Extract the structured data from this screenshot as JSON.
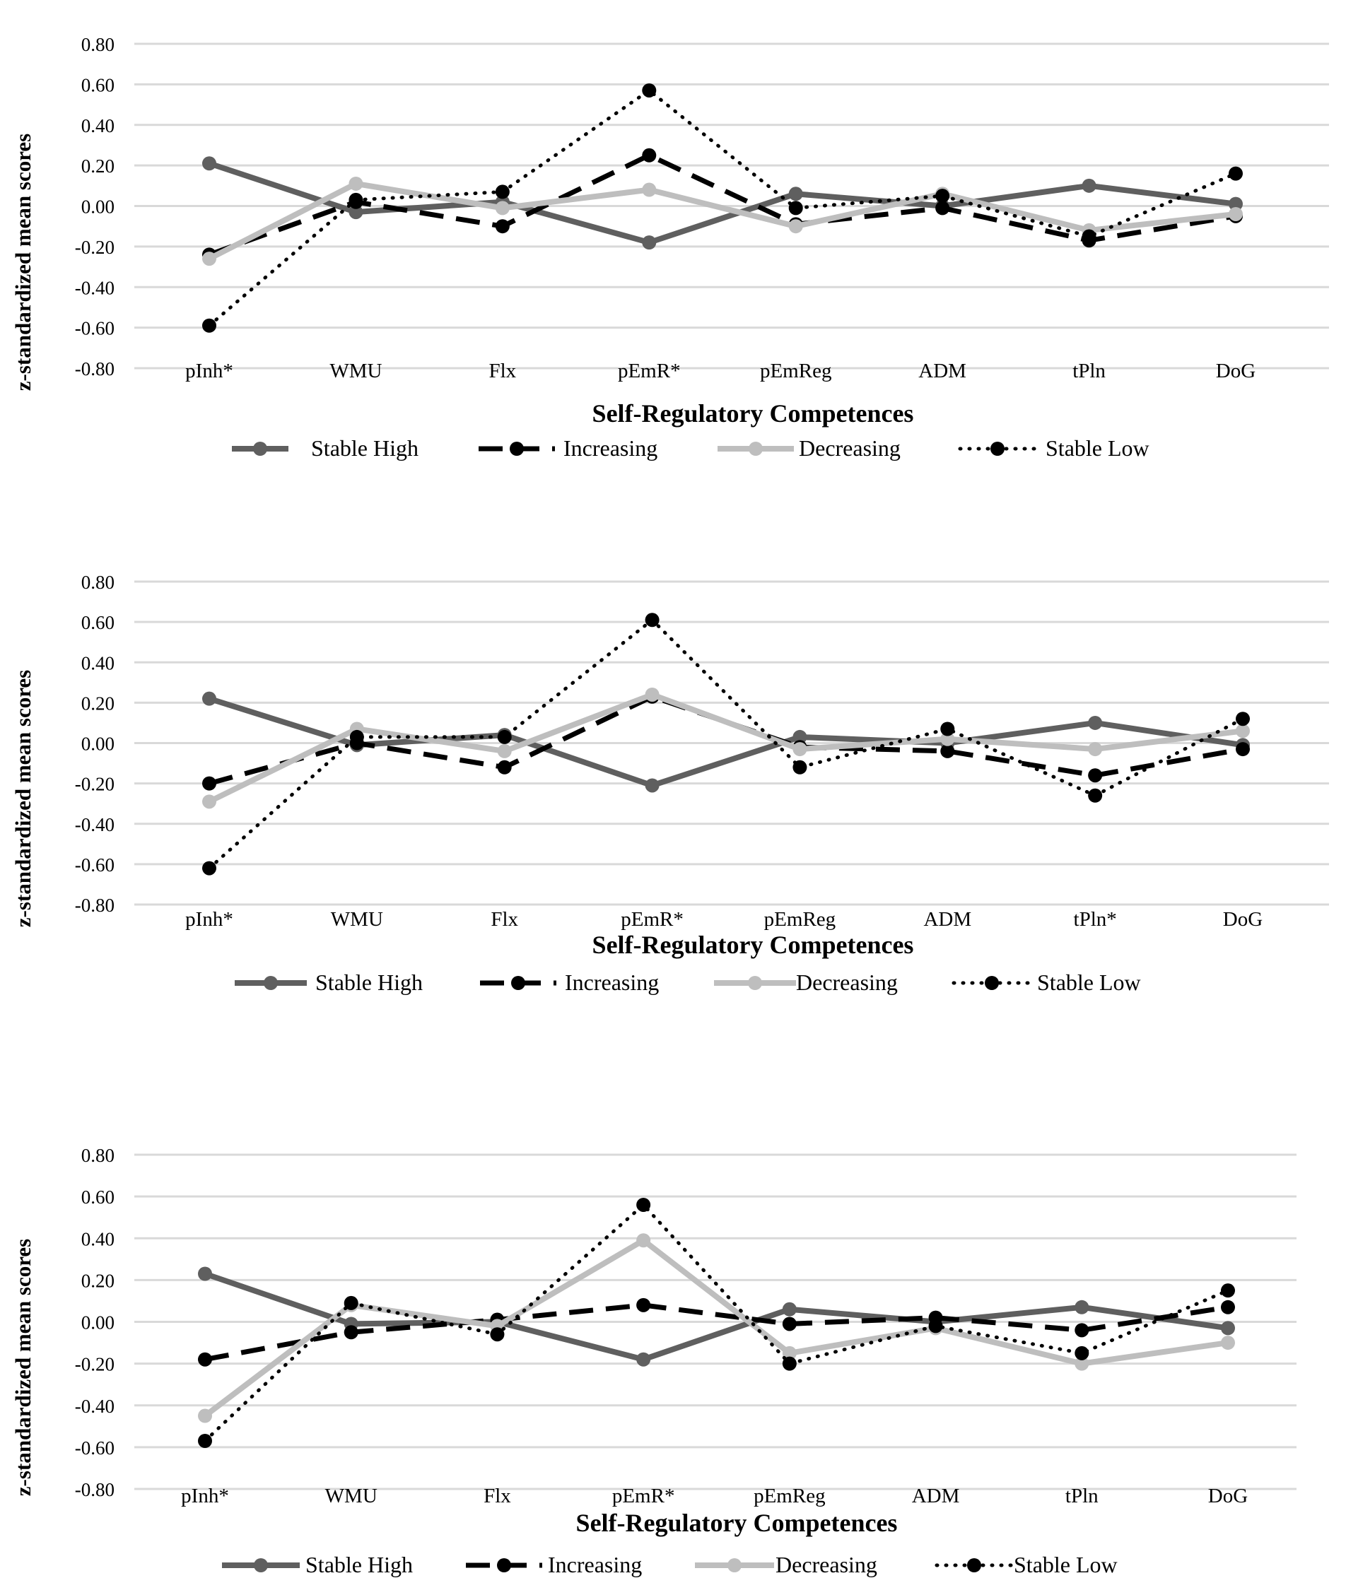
{
  "chart_data": [
    {
      "type": "line",
      "panel": "Top",
      "categories": [
        "pInh*",
        "WMU",
        "Flx",
        "pEmR*",
        "pEmReg",
        "ADM",
        "tPln",
        "DoG"
      ],
      "xlabel": "Self-Regulatory Competences",
      "ylabel": "z-standardized mean scores",
      "ylim": [
        -0.8,
        0.8
      ],
      "yticks": [
        "0.80",
        "0.60",
        "0.40",
        "0.20",
        "0.00",
        "-0.20",
        "-0.40",
        "-0.60",
        "-0.80"
      ],
      "grid": true,
      "legend_position": "bottom",
      "series": [
        {
          "name": "Stable High",
          "style": "stable_high",
          "values": [
            0.21,
            -0.03,
            0.02,
            -0.18,
            0.06,
            0.0,
            0.1,
            0.01
          ]
        },
        {
          "name": "Increasing",
          "style": "increasing",
          "values": [
            -0.24,
            0.02,
            -0.1,
            0.25,
            -0.09,
            -0.01,
            -0.17,
            -0.05
          ]
        },
        {
          "name": "Decreasing",
          "style": "decreasing",
          "values": [
            -0.26,
            0.11,
            -0.01,
            0.08,
            -0.1,
            0.06,
            -0.12,
            -0.04
          ]
        },
        {
          "name": "Stable Low",
          "style": "stable_low",
          "values": [
            -0.59,
            0.03,
            0.07,
            0.57,
            -0.01,
            0.05,
            -0.15,
            0.16
          ]
        }
      ]
    },
    {
      "type": "line",
      "panel": "Middle",
      "categories": [
        "pInh*",
        "WMU",
        "Flx",
        "pEmR*",
        "pEmReg",
        "ADM",
        "tPln*",
        "DoG"
      ],
      "xlabel": "Self-Regulatory Competences",
      "ylabel": "z-standardized mean scores",
      "ylim": [
        -0.8,
        0.8
      ],
      "yticks": [
        "0.80",
        "0.60",
        "0.40",
        "0.20",
        "0.00",
        "-0.20",
        "-0.40",
        "-0.60",
        "-0.80"
      ],
      "grid": true,
      "legend_position": "bottom",
      "series": [
        {
          "name": "Stable High",
          "style": "stable_high",
          "values": [
            0.22,
            -0.01,
            0.04,
            -0.21,
            0.03,
            0.0,
            0.1,
            -0.01
          ]
        },
        {
          "name": "Increasing",
          "style": "increasing",
          "values": [
            -0.2,
            0.0,
            -0.12,
            0.23,
            -0.02,
            -0.04,
            -0.16,
            -0.03
          ]
        },
        {
          "name": "Decreasing",
          "style": "decreasing",
          "values": [
            -0.29,
            0.07,
            -0.04,
            0.24,
            -0.03,
            0.02,
            -0.03,
            0.06
          ]
        },
        {
          "name": "Stable Low",
          "style": "stable_low",
          "values": [
            -0.62,
            0.03,
            0.03,
            0.61,
            -0.12,
            0.07,
            -0.26,
            0.12
          ]
        }
      ]
    },
    {
      "type": "line",
      "panel": "Bottom",
      "categories": [
        "pInh*",
        "WMU",
        "Flx",
        "pEmR*",
        "pEmReg",
        "ADM",
        "tPln",
        "DoG"
      ],
      "xlabel": "Self-Regulatory Competences",
      "ylabel": "z-standardized mean scores",
      "ylim": [
        -0.8,
        0.8
      ],
      "yticks": [
        "0.80",
        "0.60",
        "0.40",
        "0.20",
        "0.00",
        "-0.20",
        "-0.40",
        "-0.60",
        "-0.80"
      ],
      "grid": true,
      "legend_position": "bottom",
      "series": [
        {
          "name": "Stable High",
          "style": "stable_high",
          "values": [
            0.23,
            -0.01,
            0.0,
            -0.18,
            0.06,
            0.0,
            0.07,
            -0.03
          ]
        },
        {
          "name": "Increasing",
          "style": "increasing",
          "values": [
            -0.18,
            -0.05,
            0.01,
            0.08,
            -0.01,
            0.02,
            -0.04,
            0.07
          ]
        },
        {
          "name": "Decreasing",
          "style": "decreasing",
          "values": [
            -0.45,
            0.08,
            -0.02,
            0.39,
            -0.15,
            -0.03,
            -0.2,
            -0.1
          ]
        },
        {
          "name": "Stable Low",
          "style": "stable_low",
          "values": [
            -0.57,
            0.09,
            -0.06,
            0.56,
            -0.2,
            -0.02,
            -0.15,
            0.15
          ]
        }
      ]
    }
  ]
}
